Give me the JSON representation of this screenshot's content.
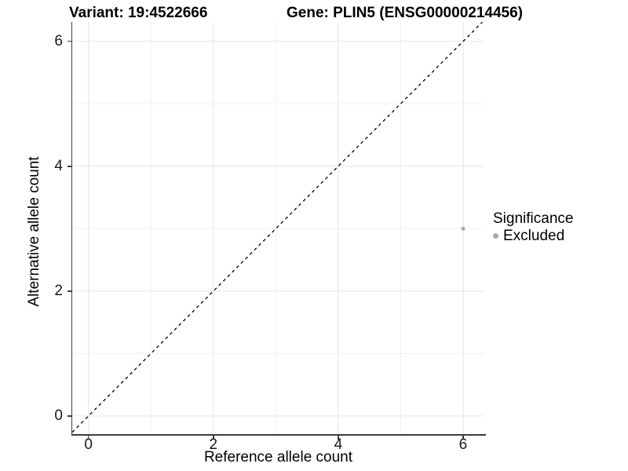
{
  "chart_data": {
    "type": "scatter",
    "titles": {
      "variant": "Variant: 19:4522666",
      "gene": "Gene: PLIN5 (ENSG00000214456)"
    },
    "xlabel": "Reference allele count",
    "ylabel": "Alternative allele count",
    "xlim": [
      -0.26,
      6.34
    ],
    "ylim": [
      -0.29,
      6.31
    ],
    "x_major_ticks": [
      0,
      2,
      4,
      6
    ],
    "x_minor_ticks": [
      1,
      3,
      5
    ],
    "y_major_ticks": [
      0,
      2,
      4,
      6
    ],
    "y_minor_ticks": [
      1,
      3,
      5
    ],
    "grid": true,
    "reference_line": {
      "style": "dashed",
      "slope": 1,
      "intercept": 0
    },
    "series": [
      {
        "name": "Excluded",
        "color": "#ababab",
        "points": [
          {
            "x": 6,
            "y": 3
          }
        ]
      }
    ],
    "legend": {
      "title": "Significance",
      "position": "right",
      "items": [
        {
          "label": "Excluded",
          "color": "#ababab"
        }
      ]
    }
  },
  "colors": {
    "grid_major": "#e4e4e4",
    "grid_minor": "#efefef",
    "axis_line": "#3d3d3d",
    "reference_line": "#000000",
    "text": "#000000"
  }
}
